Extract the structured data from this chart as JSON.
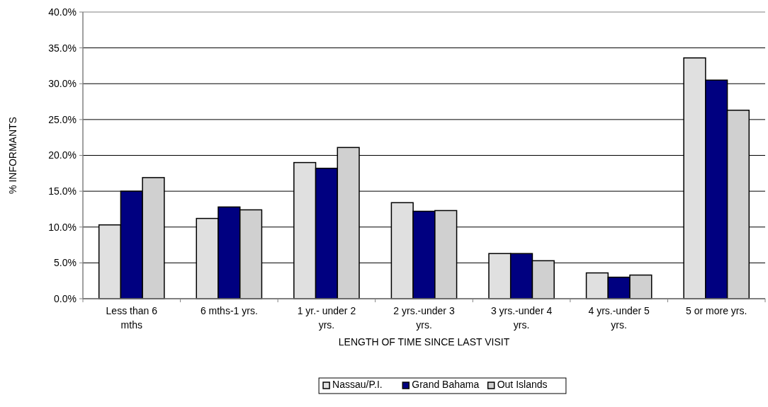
{
  "chart_data": {
    "type": "bar",
    "xlabel": "LENGTH OF TIME SINCE LAST VISIT",
    "ylabel": "% INFORMANTS",
    "categories": [
      "Less than 6 mths",
      "6 mths-1 yrs.",
      "1 yr.- under 2 yrs.",
      "2 yrs.-under 3 yrs.",
      "3 yrs.-under 4 yrs.",
      "4 yrs.-under 5 yrs.",
      "5 or more yrs."
    ],
    "series": [
      {
        "name": "Nassau/P.I.",
        "color": "#e0e0e0",
        "values": [
          10.3,
          11.2,
          19.0,
          13.4,
          6.3,
          3.6,
          33.6
        ]
      },
      {
        "name": "Grand Bahama",
        "color": "#000080",
        "values": [
          15.0,
          12.8,
          18.2,
          12.2,
          6.3,
          3.0,
          30.5
        ]
      },
      {
        "name": "Out Islands",
        "color": "#d0d0d0",
        "values": [
          16.9,
          12.4,
          21.1,
          12.3,
          5.3,
          3.3,
          26.3
        ]
      }
    ],
    "ylim": [
      0,
      40
    ],
    "yticks": [
      {
        "value": 0,
        "label": "0.0%"
      },
      {
        "value": 5,
        "label": "5.0%"
      },
      {
        "value": 10,
        "label": "10.0%"
      },
      {
        "value": 15,
        "label": "15.0%"
      },
      {
        "value": 20,
        "label": "20.0%"
      },
      {
        "value": 25,
        "label": "25.0%"
      },
      {
        "value": 30,
        "label": "30.0%"
      },
      {
        "value": 35,
        "label": "35.0%"
      },
      {
        "value": 40,
        "label": "40.0%"
      }
    ],
    "grid": "y",
    "legend": "bottom"
  }
}
